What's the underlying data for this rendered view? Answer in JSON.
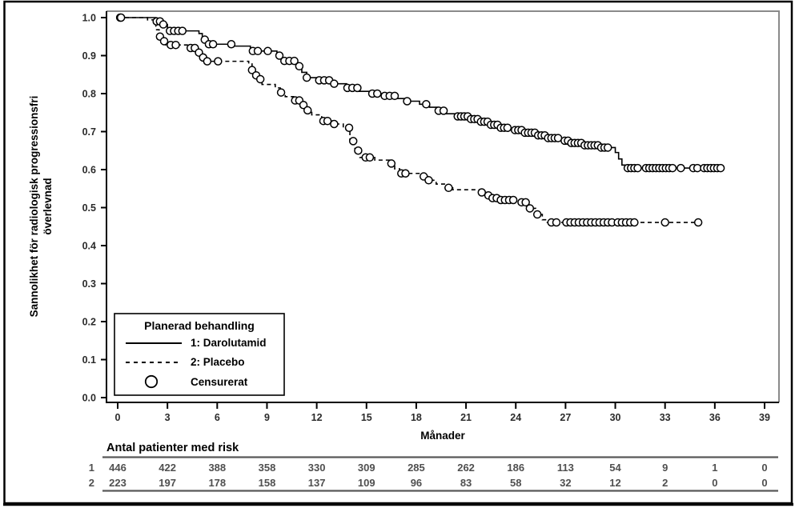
{
  "window": {
    "background": "#ffffff",
    "border_color": "#000000"
  },
  "chart_data": {
    "type": "line",
    "subtype": "kaplan-meier-step",
    "title": "",
    "xlabel": "Månader",
    "ylabel_line1": "Sannolikhet för radiologisk progressionsfri",
    "ylabel_line2": "överlevnad",
    "xlim": [
      0,
      39
    ],
    "ylim": [
      0.0,
      1.0
    ],
    "x_ticks": [
      0,
      3,
      6,
      9,
      12,
      15,
      18,
      21,
      24,
      27,
      30,
      33,
      36,
      39
    ],
    "y_tick_step": 0.1,
    "grid": "off",
    "legend_position": "lower-left",
    "legend": {
      "title": "Planerad behandling",
      "entries": [
        {
          "label": "1: Darolutamid",
          "style": "solid"
        },
        {
          "label": "2: Placebo",
          "style": "dashed"
        },
        {
          "label": "Censurerat",
          "style": "circle"
        }
      ]
    },
    "series": [
      {
        "name": "1: Darolutamid",
        "line": "solid",
        "steps": [
          [
            0,
            1.0
          ],
          [
            2.3,
            0.99
          ],
          [
            2.6,
            0.982
          ],
          [
            3.0,
            0.965
          ],
          [
            4.9,
            0.958
          ],
          [
            5.1,
            0.942
          ],
          [
            5.3,
            0.93
          ],
          [
            6.9,
            0.925
          ],
          [
            8.0,
            0.912
          ],
          [
            9.6,
            0.9
          ],
          [
            9.9,
            0.886
          ],
          [
            10.8,
            0.872
          ],
          [
            11.1,
            0.856
          ],
          [
            11.4,
            0.842
          ],
          [
            12.1,
            0.835
          ],
          [
            13.0,
            0.826
          ],
          [
            13.8,
            0.815
          ],
          [
            14.5,
            0.806
          ],
          [
            15.2,
            0.8
          ],
          [
            16.0,
            0.794
          ],
          [
            16.8,
            0.787
          ],
          [
            17.4,
            0.78
          ],
          [
            18.2,
            0.772
          ],
          [
            18.8,
            0.764
          ],
          [
            19.3,
            0.755
          ],
          [
            19.8,
            0.747
          ],
          [
            20.4,
            0.74
          ],
          [
            21.2,
            0.733
          ],
          [
            21.8,
            0.726
          ],
          [
            22.4,
            0.718
          ],
          [
            23.0,
            0.71
          ],
          [
            23.6,
            0.704
          ],
          [
            24.4,
            0.697
          ],
          [
            25.2,
            0.69
          ],
          [
            25.9,
            0.683
          ],
          [
            26.6,
            0.676
          ],
          [
            27.3,
            0.67
          ],
          [
            28.1,
            0.664
          ],
          [
            29.0,
            0.658
          ],
          [
            30.0,
            0.645
          ],
          [
            30.2,
            0.628
          ],
          [
            30.4,
            0.612
          ],
          [
            30.6,
            0.604
          ],
          [
            36.4,
            0.604
          ]
        ],
        "censor_months": [
          0.15,
          2.35,
          2.55,
          2.75,
          3.15,
          3.4,
          3.65,
          3.9,
          5.25,
          5.5,
          5.75,
          6.85,
          8.15,
          8.45,
          9.05,
          9.75,
          10.05,
          10.35,
          10.65,
          10.95,
          11.4,
          12.15,
          12.45,
          12.75,
          13.05,
          13.85,
          14.15,
          14.45,
          15.35,
          15.65,
          16.1,
          16.4,
          16.7,
          17.45,
          18.6,
          19.35,
          19.65,
          20.5,
          20.7,
          20.9,
          21.1,
          21.3,
          21.5,
          21.7,
          21.9,
          22.1,
          22.3,
          22.5,
          22.7,
          22.9,
          23.1,
          23.3,
          23.5,
          23.95,
          24.15,
          24.35,
          24.55,
          24.75,
          24.95,
          25.15,
          25.35,
          25.55,
          25.75,
          25.95,
          26.15,
          26.35,
          26.55,
          26.95,
          27.15,
          27.35,
          27.55,
          27.75,
          27.95,
          28.15,
          28.35,
          28.55,
          28.75,
          28.95,
          29.15,
          29.35,
          29.55,
          30.75,
          30.95,
          31.15,
          31.35,
          31.85,
          32.05,
          32.25,
          32.45,
          32.65,
          32.85,
          33.05,
          33.25,
          33.45,
          33.95,
          34.7,
          34.95,
          35.35,
          35.55,
          35.75,
          35.95,
          36.15,
          36.35
        ]
      },
      {
        "name": "2: Placebo",
        "line": "dashed",
        "steps": [
          [
            0,
            1.0
          ],
          [
            1.8,
            0.994
          ],
          [
            2.3,
            0.968
          ],
          [
            2.5,
            0.95
          ],
          [
            2.7,
            0.938
          ],
          [
            2.9,
            0.928
          ],
          [
            4.3,
            0.92
          ],
          [
            4.7,
            0.908
          ],
          [
            5.1,
            0.895
          ],
          [
            5.4,
            0.885
          ],
          [
            7.9,
            0.878
          ],
          [
            8.1,
            0.862
          ],
          [
            8.3,
            0.848
          ],
          [
            8.5,
            0.838
          ],
          [
            8.7,
            0.824
          ],
          [
            9.5,
            0.815
          ],
          [
            9.8,
            0.803
          ],
          [
            10.1,
            0.792
          ],
          [
            10.6,
            0.782
          ],
          [
            11.0,
            0.77
          ],
          [
            11.3,
            0.756
          ],
          [
            11.7,
            0.744
          ],
          [
            12.3,
            0.728
          ],
          [
            13.0,
            0.72
          ],
          [
            13.6,
            0.71
          ],
          [
            14.0,
            0.675
          ],
          [
            14.3,
            0.65
          ],
          [
            14.6,
            0.632
          ],
          [
            15.5,
            0.625
          ],
          [
            16.4,
            0.616
          ],
          [
            16.7,
            0.602
          ],
          [
            17.0,
            0.59
          ],
          [
            18.3,
            0.582
          ],
          [
            18.7,
            0.572
          ],
          [
            19.2,
            0.562
          ],
          [
            19.7,
            0.552
          ],
          [
            20.2,
            0.547
          ],
          [
            21.8,
            0.54
          ],
          [
            22.2,
            0.532
          ],
          [
            22.6,
            0.525
          ],
          [
            23.0,
            0.52
          ],
          [
            24.3,
            0.514
          ],
          [
            24.8,
            0.498
          ],
          [
            25.2,
            0.482
          ],
          [
            25.6,
            0.468
          ],
          [
            25.9,
            0.461
          ],
          [
            35.3,
            0.461
          ]
        ],
        "censor_months": [
          0.2,
          2.55,
          2.8,
          3.2,
          3.5,
          4.4,
          4.65,
          4.9,
          5.15,
          5.4,
          6.05,
          8.1,
          8.35,
          8.6,
          9.85,
          10.7,
          10.95,
          11.2,
          11.45,
          12.4,
          12.65,
          13.05,
          13.95,
          14.2,
          14.5,
          14.95,
          15.2,
          16.5,
          17.1,
          17.35,
          18.45,
          18.75,
          19.95,
          21.95,
          22.35,
          22.6,
          22.85,
          23.1,
          23.35,
          23.6,
          23.85,
          24.35,
          24.6,
          24.85,
          25.3,
          26.15,
          26.45,
          27.05,
          27.3,
          27.55,
          27.8,
          28.05,
          28.3,
          28.55,
          28.8,
          29.05,
          29.3,
          29.55,
          29.8,
          30.15,
          30.4,
          30.65,
          30.9,
          31.15,
          33.0,
          35.0
        ]
      }
    ],
    "risk_table": {
      "heading": "Antal patienter med risk",
      "months": [
        0,
        3,
        6,
        9,
        12,
        15,
        18,
        21,
        24,
        27,
        30,
        33,
        36,
        39
      ],
      "rows": [
        {
          "label": "1",
          "counts": [
            446,
            422,
            388,
            358,
            330,
            309,
            285,
            262,
            186,
            113,
            54,
            9,
            1,
            0
          ]
        },
        {
          "label": "2",
          "counts": [
            223,
            197,
            178,
            158,
            137,
            109,
            96,
            83,
            58,
            32,
            12,
            2,
            0,
            0
          ]
        }
      ]
    },
    "colors": {
      "curve": "#000000",
      "axis": "#000000",
      "frame_top_right": "#8a8a8a",
      "tick_label": "#2b2b2b",
      "table_rule": "#595959",
      "risk_number": "#4f4f4f"
    }
  }
}
